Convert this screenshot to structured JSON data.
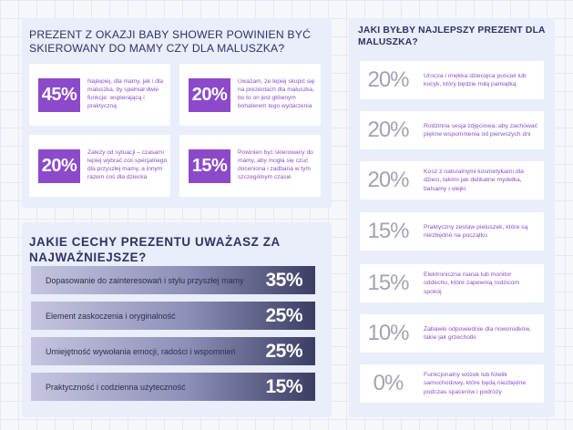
{
  "section1": {
    "title": "Prezent z okazji baby shower powinien być skierowany do mamy czy dla maluszka?",
    "cards": [
      {
        "pct": "45%",
        "text": "Najlepiej, dla mamy, jak i dla maluszka, by spełniał dwie funkcje: wspierającą i praktyczną"
      },
      {
        "pct": "20%",
        "text": "Uważam, że lepiej skupić się na prezentach dla maluszka, bo to on jest głównym bohaterem tego wydarzenia"
      },
      {
        "pct": "20%",
        "text": "Zależy od sytuacji – czasami lepiej wybrać coś specjalnego dla przyszłej mamy, a innym razem coś dla dziecka"
      },
      {
        "pct": "15%",
        "text": "Powinien być skierowany do mamy, aby mogła się czuć doceniona i zadbana w tym szczególnym czasie"
      }
    ]
  },
  "section2": {
    "title": "Jakie cechy prezentu uważasz za najważniejsze?",
    "bars": [
      {
        "label": "Dopasowanie do zainteresowań i stylu przyszłej mamy",
        "pct": "35%"
      },
      {
        "label": "Element zaskoczenia i oryginalność",
        "pct": "25%"
      },
      {
        "label": "Umiejętność wywołania emocji, radości i wspomnień",
        "pct": "25%"
      },
      {
        "label": "Praktyczność i codzienna użyteczność",
        "pct": "15%"
      }
    ]
  },
  "section3": {
    "title": "Jaki byłby najlepszy prezent dla maluszka?",
    "items": [
      {
        "pct": "20%",
        "text": "Urocza i miękka dziecięca pościel lub kocyk, który będzie miłą pamiątką"
      },
      {
        "pct": "20%",
        "text": "Rodzinna sesja zdjęciowa, aby zachować piękne wspomnienia od pierwszych dni"
      },
      {
        "pct": "20%",
        "text": "Kosz z naturalnymi kosmetykami dla dzieci, takimi jak delikatne mydełka, balsamy i olejki"
      },
      {
        "pct": "15%",
        "text": "Praktyczny zestaw pieluszek, które są niezbędne na początku"
      },
      {
        "pct": "15%",
        "text": "Elektroniczna niania lub monitor oddechu, które zapewnią rodzicom spokój"
      },
      {
        "pct": "10%",
        "text": "Zabawki odpowiednie dla noworodków, takie jak grzechotki"
      },
      {
        "pct": "0%",
        "text": "Funkcjonalny wózek lub fotelik samochodowy, które będą niezbędne podczas spacerów i podróży"
      }
    ]
  }
}
